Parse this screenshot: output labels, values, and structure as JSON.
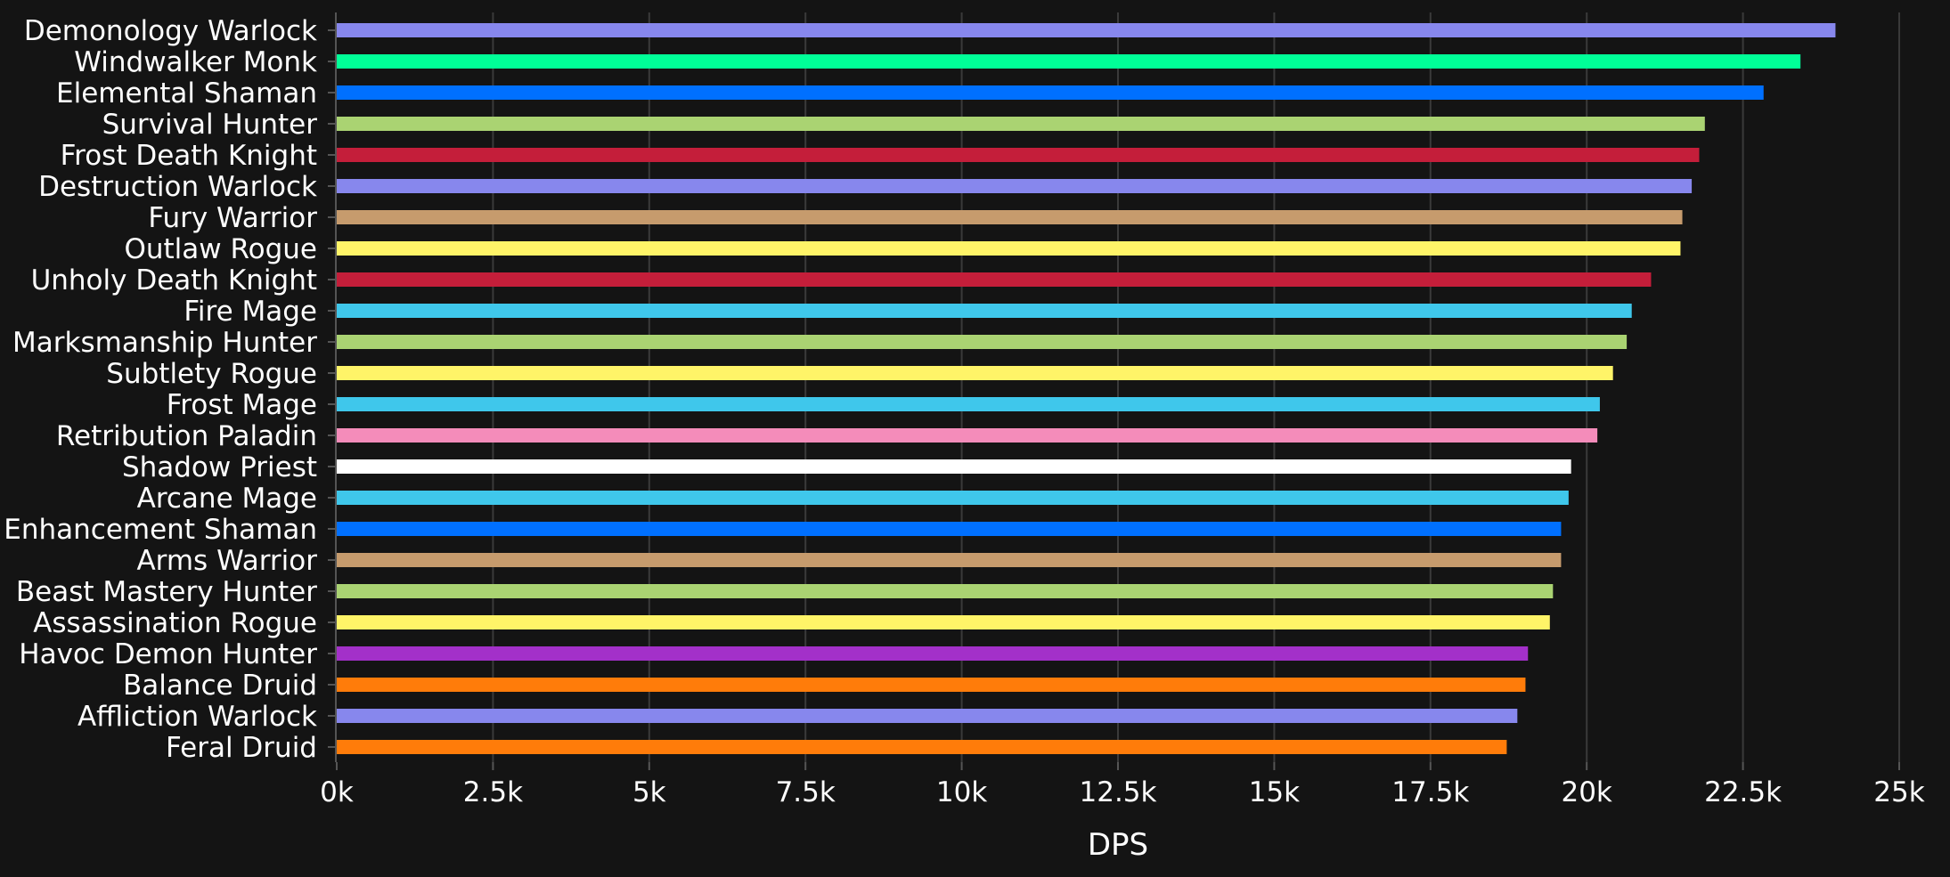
{
  "chart_data": {
    "type": "bar",
    "orientation": "horizontal",
    "title": "",
    "xlabel": "DPS",
    "ylabel": "",
    "xlim": [
      0,
      25000
    ],
    "x_ticks": [
      {
        "value": 0,
        "label": "0k"
      },
      {
        "value": 2500,
        "label": "2.5k"
      },
      {
        "value": 5000,
        "label": "5k"
      },
      {
        "value": 7500,
        "label": "7.5k"
      },
      {
        "value": 10000,
        "label": "10k"
      },
      {
        "value": 12500,
        "label": "12.5k"
      },
      {
        "value": 15000,
        "label": "15k"
      },
      {
        "value": 17500,
        "label": "17.5k"
      },
      {
        "value": 20000,
        "label": "20k"
      },
      {
        "value": 22500,
        "label": "22.5k"
      },
      {
        "value": 25000,
        "label": "25k"
      }
    ],
    "grid": "vertical",
    "legend": "none",
    "categories": [
      "Demonology Warlock",
      "Windwalker Monk",
      "Elemental Shaman",
      "Survival Hunter",
      "Frost Death Knight",
      "Destruction Warlock",
      "Fury Warrior",
      "Outlaw Rogue",
      "Unholy Death Knight",
      "Fire Mage",
      "Marksmanship Hunter",
      "Subtlety Rogue",
      "Frost Mage",
      "Retribution Paladin",
      "Shadow Priest",
      "Arcane Mage",
      "Enhancement Shaman",
      "Arms Warrior",
      "Beast Mastery Hunter",
      "Assassination Rogue",
      "Havoc Demon Hunter",
      "Balance Druid",
      "Affliction Warlock",
      "Feral Druid"
    ],
    "values": [
      23980,
      23420,
      22830,
      21890,
      21800,
      21680,
      21530,
      21500,
      21030,
      20720,
      20640,
      20420,
      20210,
      20170,
      19750,
      19710,
      19590,
      19590,
      19460,
      19410,
      19060,
      19020,
      18890,
      18720
    ],
    "colors": [
      "#8787ED",
      "#00FF98",
      "#0070FF",
      "#AAD372",
      "#C41E3A",
      "#8787ED",
      "#C69B6D",
      "#FFF468",
      "#C41E3A",
      "#3FC7EB",
      "#AAD372",
      "#FFF468",
      "#3FC7EB",
      "#F48CBA",
      "#FFFFFF",
      "#3FC7EB",
      "#0070FF",
      "#C69B6D",
      "#AAD372",
      "#FFF468",
      "#A330C9",
      "#FF7C0A",
      "#8787ED",
      "#FF7C0A"
    ]
  }
}
